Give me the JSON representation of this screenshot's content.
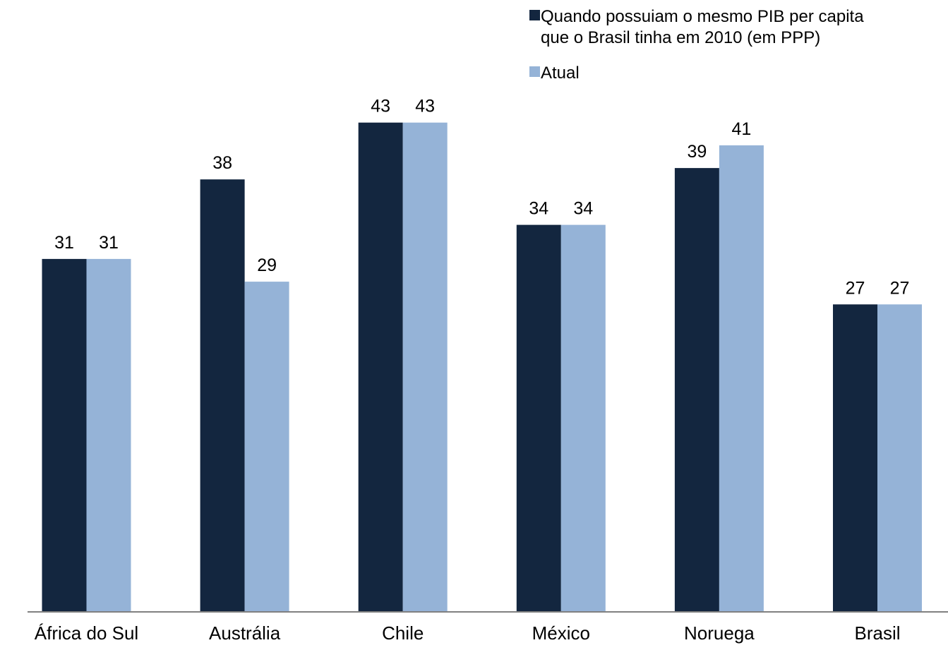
{
  "chart_data": {
    "type": "bar",
    "categories": [
      "África do Sul",
      "Austrália",
      "Chile",
      "México",
      "Noruega",
      "Brasil"
    ],
    "series": [
      {
        "name": "Quando possuiam o mesmo PIB per capita que o Brasil tinha em 2010 (em PPP)",
        "name_lines": [
          "Quando possuiam o mesmo PIB per capita",
          "que o Brasil tinha em 2010 (em PPP)"
        ],
        "color": "#13263f",
        "values": [
          31,
          38,
          43,
          34,
          39,
          27
        ],
        "labels": [
          "31",
          "38",
          "43",
          "34",
          "39",
          "27"
        ]
      },
      {
        "name": "Atual",
        "name_lines": [
          "Atual"
        ],
        "color": "#95b3d7",
        "values": [
          31,
          29,
          43,
          34,
          41,
          27
        ],
        "labels": [
          "31",
          "29",
          "43",
          "34",
          "41",
          "27"
        ]
      }
    ],
    "ylim": [
      0,
      50
    ],
    "title": "",
    "xlabel": "",
    "ylabel": "",
    "grid": false,
    "legend": "top-right",
    "axis_color": "#808080"
  }
}
